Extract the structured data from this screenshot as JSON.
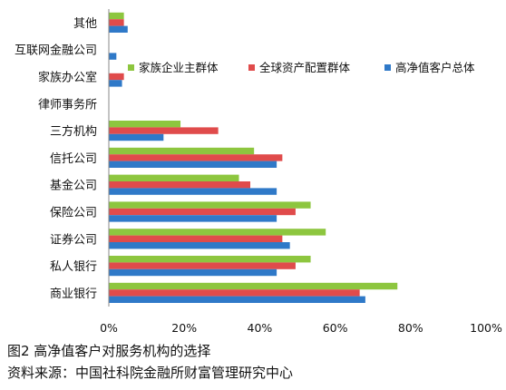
{
  "chart_data": {
    "type": "bar",
    "orientation": "horizontal",
    "categories": [
      "其他",
      "互联网金融公司",
      "家族办公室",
      "律师事务所",
      "三方机构",
      "信托公司",
      "基金公司",
      "保险公司",
      "证券公司",
      "私人银行",
      "商业银行"
    ],
    "series": [
      {
        "name": "家族企业主群体",
        "color": "#8dc63f",
        "values": [
          4,
          0,
          0,
          0,
          19,
          38.5,
          34.5,
          53.5,
          57.5,
          53.5,
          76.5
        ]
      },
      {
        "name": "全球资产配置群体",
        "color": "#e04b4b",
        "values": [
          4,
          0,
          4,
          0,
          29,
          46,
          37.5,
          49.5,
          46,
          49.5,
          66.5
        ]
      },
      {
        "name": "高净值客户总体",
        "color": "#2f79c8",
        "values": [
          5,
          2,
          3.5,
          0,
          14.5,
          44.5,
          44.5,
          44.5,
          48,
          44.5,
          68
        ]
      }
    ],
    "xlim": [
      0,
      100
    ],
    "xticks": [
      "0%",
      "20%",
      "40%",
      "60%",
      "80%",
      "100%"
    ],
    "grid": false,
    "legend_position": "top-right"
  },
  "caption": {
    "title": "图2  高净值客户对服务机构的选择",
    "source": "资料来源：中国社科院金融所财富管理研究中心"
  }
}
